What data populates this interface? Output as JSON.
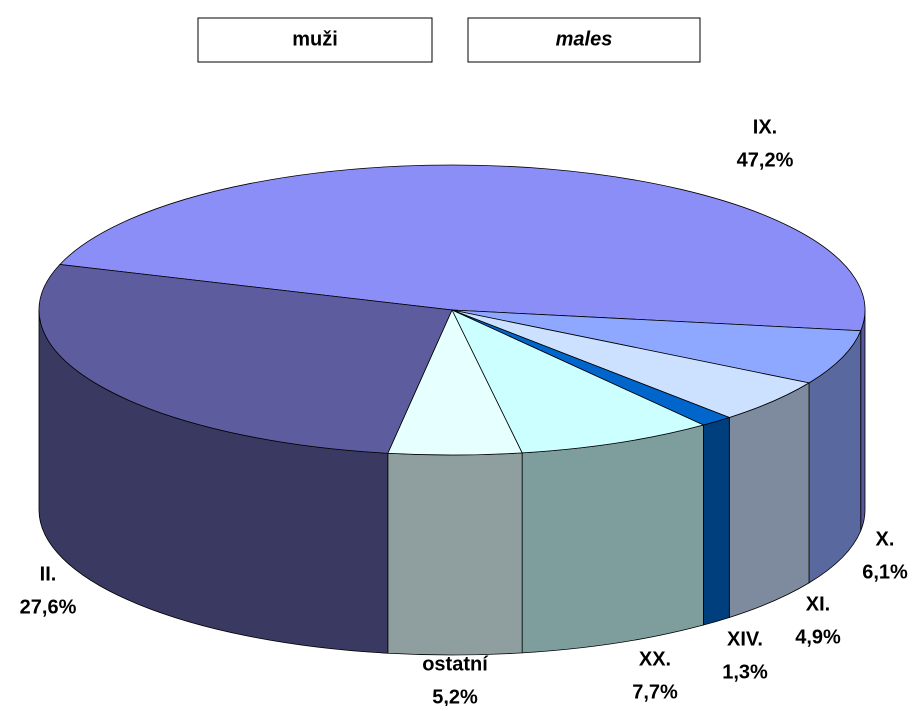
{
  "chart_data": {
    "type": "pie3d",
    "title": "muži",
    "subtitle": "males",
    "categories": [
      "IX.",
      "X.",
      "XI.",
      "XIV.",
      "XX.",
      "ostatní",
      "II."
    ],
    "values": [
      47.2,
      6.1,
      4.9,
      1.3,
      7.7,
      5.2,
      27.6
    ],
    "value_labels": [
      "47,2%",
      "6,1%",
      "4,9%",
      "1,3%",
      "7,7%",
      "5,2%",
      "27,6%"
    ],
    "colors": [
      "#8c8ef7",
      "#8fa8ff",
      "#cce0ff",
      "#0066cc",
      "#ccffff",
      "#e6ffff",
      "#5c5c9e"
    ]
  }
}
